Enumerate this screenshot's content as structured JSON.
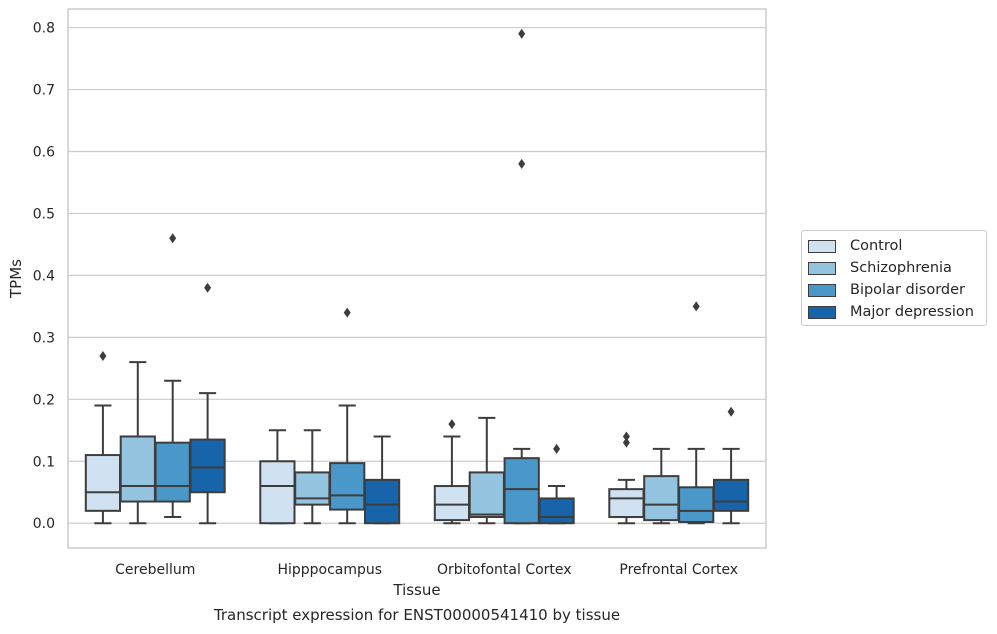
{
  "chart_data": {
    "type": "box",
    "caption": "Transcript expression for ENST00000541410 by tissue",
    "xlabel": "Tissue",
    "ylabel": "TPMs",
    "ylim": [
      -0.04,
      0.83
    ],
    "yticks": [
      "0.0",
      "0.1",
      "0.2",
      "0.3",
      "0.4",
      "0.5",
      "0.6",
      "0.7",
      "0.8"
    ],
    "grid": true,
    "legend_position": "right",
    "categories": [
      "Cerebellum",
      "Hipppocampus",
      "Orbitofontal Cortex",
      "Prefrontal Cortex"
    ],
    "series": [
      {
        "name": "Control",
        "color": "#d0e1f2",
        "boxes": [
          {
            "min": 0.0,
            "q1": 0.02,
            "median": 0.05,
            "q3": 0.11,
            "max": 0.19,
            "outliers": [
              0.27
            ]
          },
          {
            "min": 0.0,
            "q1": 0.0,
            "median": 0.06,
            "q3": 0.1,
            "max": 0.15,
            "outliers": []
          },
          {
            "min": 0.0,
            "q1": 0.005,
            "median": 0.03,
            "q3": 0.06,
            "max": 0.14,
            "outliers": [
              0.16
            ]
          },
          {
            "min": 0.0,
            "q1": 0.01,
            "median": 0.04,
            "q3": 0.055,
            "max": 0.07,
            "outliers": [
              0.13,
              0.14
            ]
          }
        ]
      },
      {
        "name": "Schizophrenia",
        "color": "#94c4df",
        "boxes": [
          {
            "min": 0.0,
            "q1": 0.035,
            "median": 0.06,
            "q3": 0.14,
            "max": 0.26,
            "outliers": []
          },
          {
            "min": 0.0,
            "q1": 0.03,
            "median": 0.04,
            "q3": 0.082,
            "max": 0.15,
            "outliers": []
          },
          {
            "min": 0.0,
            "q1": 0.01,
            "median": 0.014,
            "q3": 0.082,
            "max": 0.17,
            "outliers": []
          },
          {
            "min": 0.0,
            "q1": 0.005,
            "median": 0.03,
            "q3": 0.076,
            "max": 0.12,
            "outliers": []
          }
        ]
      },
      {
        "name": "Bipolar disorder",
        "color": "#4a98c9",
        "boxes": [
          {
            "min": 0.01,
            "q1": 0.035,
            "median": 0.06,
            "q3": 0.13,
            "max": 0.23,
            "outliers": [
              0.46
            ]
          },
          {
            "min": 0.0,
            "q1": 0.022,
            "median": 0.045,
            "q3": 0.097,
            "max": 0.19,
            "outliers": [
              0.34
            ]
          },
          {
            "min": 0.0,
            "q1": 0.0,
            "median": 0.055,
            "q3": 0.105,
            "max": 0.12,
            "outliers": [
              0.58,
              0.79
            ]
          },
          {
            "min": 0.0,
            "q1": 0.002,
            "median": 0.02,
            "q3": 0.058,
            "max": 0.12,
            "outliers": [
              0.35
            ]
          }
        ]
      },
      {
        "name": "Major depression",
        "color": "#1764ab",
        "boxes": [
          {
            "min": 0.0,
            "q1": 0.05,
            "median": 0.09,
            "q3": 0.135,
            "max": 0.21,
            "outliers": [
              0.38
            ]
          },
          {
            "min": 0.0,
            "q1": 0.0,
            "median": 0.03,
            "q3": 0.07,
            "max": 0.14,
            "outliers": []
          },
          {
            "min": 0.0,
            "q1": 0.0,
            "median": 0.01,
            "q3": 0.04,
            "max": 0.06,
            "outliers": [
              0.12
            ]
          },
          {
            "min": 0.0,
            "q1": 0.02,
            "median": 0.035,
            "q3": 0.07,
            "max": 0.12,
            "outliers": [
              0.18
            ]
          }
        ]
      }
    ]
  }
}
